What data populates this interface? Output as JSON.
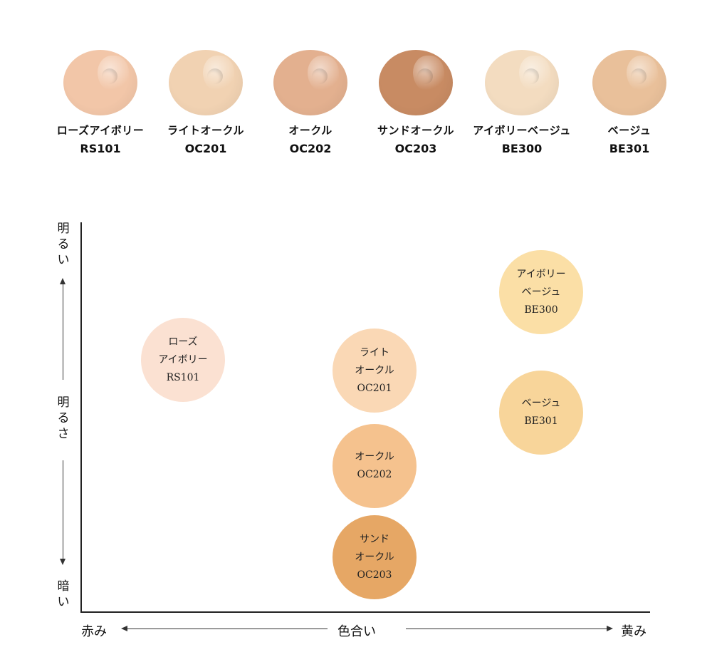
{
  "swatches": [
    {
      "name": "ローズアイボリー",
      "code": "RS101",
      "color": "#f2c6a8"
    },
    {
      "name": "ライトオークル",
      "code": "OC201",
      "color": "#f1d2b2"
    },
    {
      "name": "オークル",
      "code": "OC202",
      "color": "#e3b08f"
    },
    {
      "name": "サンドオークル",
      "code": "OC203",
      "color": "#c88b63"
    },
    {
      "name": "アイボリーベージュ",
      "code": "BE300",
      "color": "#f3dcc0"
    },
    {
      "name": "ベージュ",
      "code": "BE301",
      "color": "#e9c09a"
    }
  ],
  "chart": {
    "y_top": [
      "明",
      "る",
      "い"
    ],
    "y_mid": [
      "明",
      "る",
      "さ"
    ],
    "y_bottom": [
      "暗",
      "い"
    ],
    "x_left": "赤み",
    "x_mid": "色合い",
    "x_right": "黄み"
  },
  "points": [
    {
      "lines": [
        "ローズ",
        "アイボリー",
        "RS101"
      ],
      "color": "#fbe1d2"
    },
    {
      "lines": [
        "ライト",
        "オークル",
        "OC201"
      ],
      "color": "#fad8b5"
    },
    {
      "lines": [
        "オークル",
        "OC202"
      ],
      "color": "#f5c28e"
    },
    {
      "lines": [
        "サンド",
        "オークル",
        "OC203"
      ],
      "color": "#e6a765"
    },
    {
      "lines": [
        "アイボリー",
        "ベージュ",
        "BE300"
      ],
      "color": "#fbdfa6"
    },
    {
      "lines": [
        "ベージュ",
        "BE301"
      ],
      "color": "#f8d59a"
    }
  ]
}
